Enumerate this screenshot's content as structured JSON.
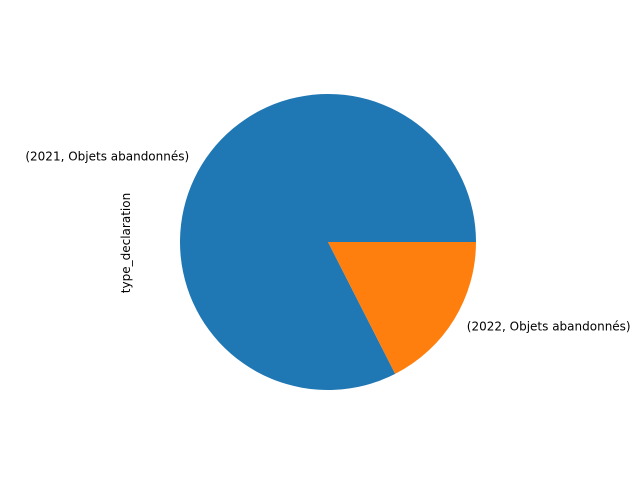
{
  "chart_data": {
    "type": "pie",
    "ylabel": "type_declaration",
    "start_angle_deg": 0,
    "direction": "counterclockwise",
    "slices": [
      {
        "label": "(2021, Objets abandonnés)",
        "value": 82.5,
        "color": "#1f77b4"
      },
      {
        "label": "(2022, Objets abandonnés)",
        "value": 17.5,
        "color": "#ff7f0e"
      }
    ]
  }
}
